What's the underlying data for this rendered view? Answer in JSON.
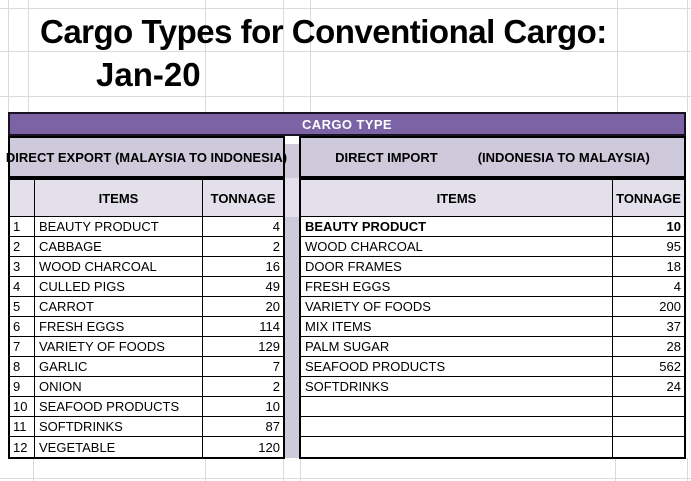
{
  "title": {
    "line1": "Cargo Types for Conventional Cargo:",
    "line2": "Jan-20"
  },
  "banner": {
    "label": "CARGO TYPE"
  },
  "export_table": {
    "section_title": "DIRECT EXPORT (MALAYSIA TO INDONESIA)",
    "columns": {
      "row_no": "",
      "items": "ITEMS",
      "tonnage": "TONNAGE"
    },
    "rows": [
      {
        "no": "1",
        "item": "BEAUTY PRODUCT",
        "tonnage": "4"
      },
      {
        "no": "2",
        "item": "CABBAGE",
        "tonnage": "2"
      },
      {
        "no": "3",
        "item": "WOOD CHARCOAL",
        "tonnage": "16"
      },
      {
        "no": "4",
        "item": "CULLED PIGS",
        "tonnage": "49"
      },
      {
        "no": "5",
        "item": "CARROT",
        "tonnage": "20"
      },
      {
        "no": "6",
        "item": "FRESH EGGS",
        "tonnage": "114"
      },
      {
        "no": "7",
        "item": "VARIETY OF FOODS",
        "tonnage": "129"
      },
      {
        "no": "8",
        "item": "GARLIC",
        "tonnage": "7"
      },
      {
        "no": "9",
        "item": "ONION",
        "tonnage": "2"
      },
      {
        "no": "10",
        "item": "SEAFOOD PRODUCTS",
        "tonnage": "10"
      },
      {
        "no": "11",
        "item": "SOFTDRINKS",
        "tonnage": "87"
      },
      {
        "no": "12",
        "item": "VEGETABLE",
        "tonnage": "120"
      }
    ]
  },
  "import_table": {
    "section_title_left": "DIRECT IMPORT",
    "section_title_right": "(INDONESIA TO MALAYSIA)",
    "columns": {
      "items": "ITEMS",
      "tonnage": "TONNAGE"
    },
    "rows": [
      {
        "item": "BEAUTY PRODUCT",
        "tonnage": "10",
        "bold": true
      },
      {
        "item": "WOOD CHARCOAL",
        "tonnage": "95"
      },
      {
        "item": "DOOR FRAMES",
        "tonnage": "18"
      },
      {
        "item": "FRESH EGGS",
        "tonnage": "4"
      },
      {
        "item": "VARIETY OF FOODS",
        "tonnage": "200"
      },
      {
        "item": "MIX ITEMS",
        "tonnage": "37"
      },
      {
        "item": "PALM SUGAR",
        "tonnage": "28"
      },
      {
        "item": "SEAFOOD PRODUCTS",
        "tonnage": "562"
      },
      {
        "item": "SOFTDRINKS",
        "tonnage": "24"
      },
      {
        "item": "",
        "tonnage": ""
      },
      {
        "item": "",
        "tonnage": ""
      },
      {
        "item": "",
        "tonnage": ""
      }
    ]
  },
  "colors": {
    "banner_bg": "#7C63A5",
    "banner_text": "#FFFFFF",
    "section_bg": "#CFC9DC",
    "header_bg": "#E3E0EB",
    "table_border": "#000000",
    "gridline": "#DADADA"
  }
}
